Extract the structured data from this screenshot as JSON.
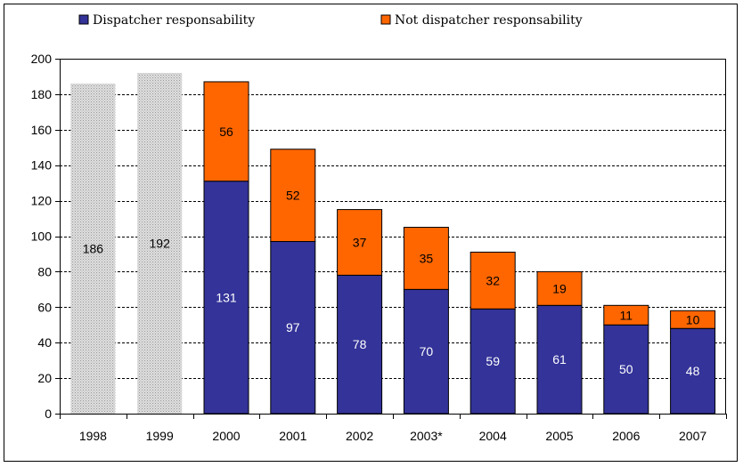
{
  "chart_data": {
    "type": "bar",
    "stacked": true,
    "categories": [
      "1998",
      "1999",
      "2000",
      "2001",
      "2002",
      "2003*",
      "2004",
      "2005",
      "2006",
      "2007"
    ],
    "series": [
      {
        "name": "",
        "color": "#c8c8c8",
        "values": [
          186,
          192,
          null,
          null,
          null,
          null,
          null,
          null,
          null,
          null
        ],
        "labels": [
          "186",
          "192",
          "",
          "",
          "",
          "",
          "",
          "",
          "",
          ""
        ],
        "label_color": "#000000"
      },
      {
        "name": "Dispatcher responsability",
        "color": "#333399",
        "values": [
          null,
          null,
          131,
          97,
          78,
          70,
          59,
          61,
          50,
          48
        ],
        "labels": [
          "",
          "",
          "131",
          "97",
          "78",
          "70",
          "59",
          "61",
          "50",
          "48"
        ],
        "label_color": "#ffffff"
      },
      {
        "name": "Not dispatcher responsability",
        "color": "#ff6600",
        "values": [
          null,
          null,
          56,
          52,
          37,
          35,
          32,
          19,
          11,
          10
        ],
        "labels": [
          "",
          "",
          "56",
          "52",
          "37",
          "35",
          "32",
          "19",
          "11",
          "10"
        ],
        "label_color": "#000000"
      }
    ],
    "title": "",
    "xlabel": "",
    "ylabel": "",
    "ylim": [
      0,
      200
    ],
    "yticks": [
      "0",
      "20",
      "40",
      "60",
      "80",
      "100",
      "120",
      "140",
      "160",
      "180",
      "200"
    ],
    "grid": true,
    "legend": "top"
  }
}
